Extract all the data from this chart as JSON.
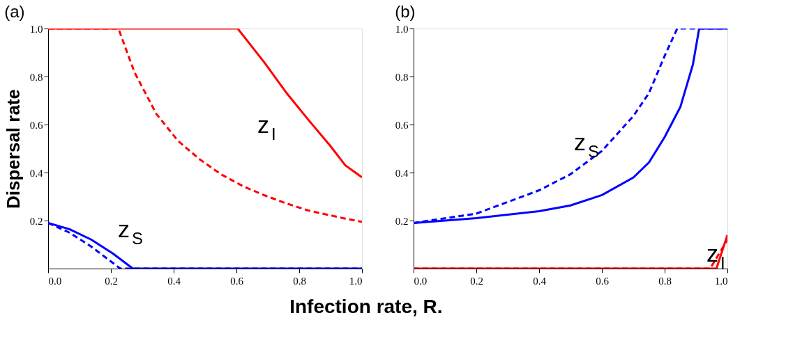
{
  "chart_data": [
    {
      "type": "line",
      "title": "(a)",
      "ylabel": "Dispersal rate",
      "xlabel": "Infection rate, R.",
      "xlim": [
        0,
        1
      ],
      "ylim": [
        0,
        1
      ],
      "xticks": [
        {
          "value": 0,
          "label": "0.0"
        },
        {
          "value": 0.2,
          "label": "0.2"
        },
        {
          "value": 0.4,
          "label": "0.4"
        },
        {
          "value": 0.6,
          "label": "0.6"
        },
        {
          "value": 0.8,
          "label": "0.8"
        },
        {
          "value": 1,
          "label": "1.0"
        }
      ],
      "yticks": [
        {
          "value": 0.2,
          "label": "0.2"
        },
        {
          "value": 0.4,
          "label": "0.4"
        },
        {
          "value": 0.6,
          "label": "0.6"
        },
        {
          "value": 0.8,
          "label": "0.8"
        },
        {
          "value": 1,
          "label": "1.0"
        }
      ],
      "grid": false,
      "series": [
        {
          "color": "#ff0000",
          "line_style": "solid",
          "x": [
            0,
            0.604,
            0.69,
            0.76,
            0.829,
            0.898,
            0.947,
            1.0
          ],
          "values": [
            1,
            1,
            0.857,
            0.731,
            0.62,
            0.513,
            0.43,
            0.38
          ]
        },
        {
          "color": "#ff0000",
          "line_style": "dashed",
          "x": [
            0,
            0.224,
            0.275,
            0.345,
            0.414,
            0.483,
            0.552,
            0.621,
            0.69,
            0.76,
            0.829,
            0.947,
            1.0
          ],
          "values": [
            1,
            1,
            0.818,
            0.644,
            0.532,
            0.455,
            0.392,
            0.343,
            0.305,
            0.271,
            0.242,
            0.208,
            0.195
          ]
        },
        {
          "color": "#0000ff",
          "line_style": "solid",
          "x": [
            0,
            0.068,
            0.137,
            0.206,
            0.27,
            1.0
          ],
          "values": [
            0.19,
            0.164,
            0.121,
            0.063,
            0,
            0
          ]
        },
        {
          "color": "#0000ff",
          "line_style": "dashed",
          "x": [
            0,
            0.068,
            0.137,
            0.206,
            0.23,
            1.0
          ],
          "values": [
            0.19,
            0.15,
            0.092,
            0.024,
            0,
            0
          ]
        }
      ],
      "annotations": [
        "z$_{I}$",
        "z$_{S}$"
      ]
    },
    {
      "type": "line",
      "title": "(b)",
      "xlim": [
        0,
        1
      ],
      "ylim": [
        0,
        1
      ],
      "xticks": [
        {
          "value": 0,
          "label": "0.0"
        },
        {
          "value": 0.2,
          "label": "0.2"
        },
        {
          "value": 0.4,
          "label": "0.4"
        },
        {
          "value": 0.6,
          "label": "0.6"
        },
        {
          "value": 0.8,
          "label": "0.8"
        },
        {
          "value": 1,
          "label": "1.0"
        }
      ],
      "yticks": [
        {
          "value": 0.2,
          "label": "0.2"
        },
        {
          "value": 0.4,
          "label": "0.4"
        },
        {
          "value": 0.6,
          "label": "0.6"
        },
        {
          "value": 0.8,
          "label": "0.8"
        },
        {
          "value": 1,
          "label": "1.0"
        }
      ],
      "grid": false,
      "series": [
        {
          "color": "#0000ff",
          "line_style": "dashed",
          "x": [
            0,
            0.2,
            0.4,
            0.5,
            0.6,
            0.7,
            0.75,
            0.8,
            0.84,
            1.0
          ],
          "values": [
            0.19,
            0.229,
            0.326,
            0.393,
            0.49,
            0.635,
            0.731,
            0.886,
            1,
            1
          ]
        },
        {
          "color": "#0000ff",
          "line_style": "solid",
          "x": [
            0,
            0.2,
            0.4,
            0.5,
            0.6,
            0.7,
            0.75,
            0.8,
            0.85,
            0.89,
            0.91,
            1.0
          ],
          "values": [
            0.19,
            0.21,
            0.239,
            0.263,
            0.306,
            0.379,
            0.442,
            0.548,
            0.673,
            0.85,
            1,
            1
          ]
        },
        {
          "color": "#ff0000",
          "line_style": "dashed",
          "x": [
            0,
            0.945,
            1.0
          ],
          "values": [
            0,
            0,
            0.12
          ]
        },
        {
          "color": "#ff0000",
          "line_style": "solid",
          "x": [
            0,
            0.965,
            1.0
          ],
          "values": [
            0,
            0,
            0.14
          ]
        }
      ],
      "annotations": [
        "z$_{S}$",
        "z$_{I}$"
      ]
    }
  ]
}
